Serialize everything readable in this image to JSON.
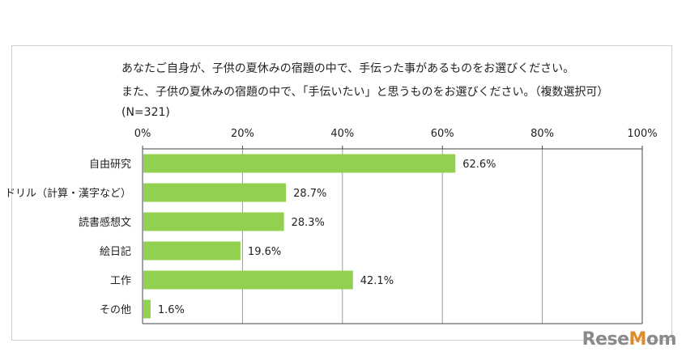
{
  "title_lines": [
    "あなたご自身が、子供の夏休みの宿題の中で、手伝った事があるものをお選びください。",
    "また、子供の夏休みの宿題の中で、「手伝いたい」と思うものをお選びください。（複数選択可）",
    "(N=321)"
  ],
  "chart_data": {
    "type": "bar",
    "orientation": "horizontal",
    "categories": [
      "自由研究",
      "ドリル（計算・漢字など）",
      "読書感想文",
      "絵日記",
      "工作",
      "その他"
    ],
    "values": [
      62.6,
      28.7,
      28.3,
      19.6,
      42.1,
      1.6
    ],
    "value_labels": [
      "62.6%",
      "28.7%",
      "28.3%",
      "19.6%",
      "42.1%",
      "1.6%"
    ],
    "xlim": [
      0,
      100
    ],
    "x_ticks": [
      "0%",
      "20%",
      "40%",
      "60%",
      "80%",
      "100%"
    ],
    "grid": true,
    "legend": "none",
    "bar_color": "#92d050"
  },
  "watermark": "ReseMom"
}
